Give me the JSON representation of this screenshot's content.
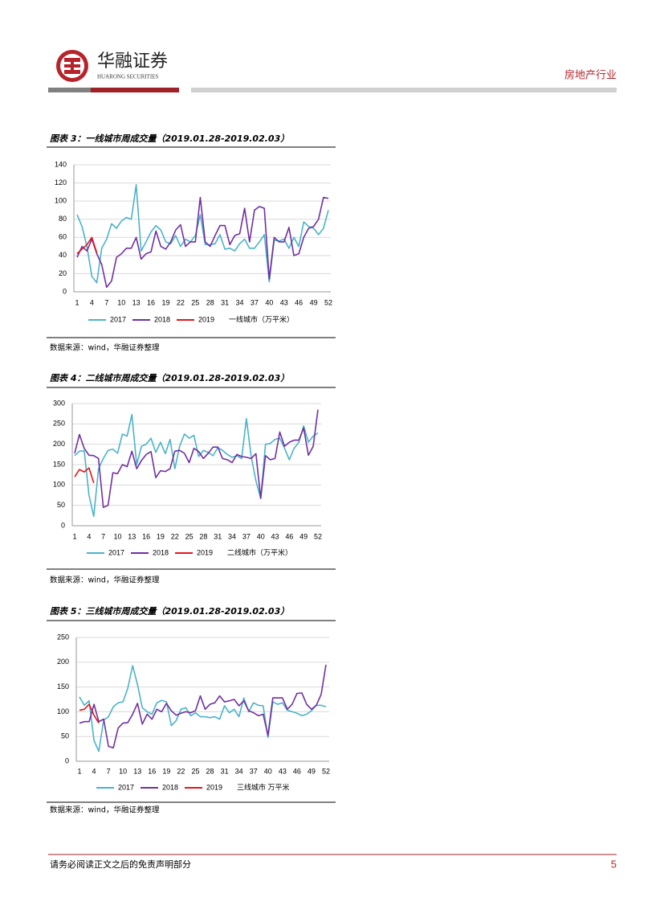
{
  "header": {
    "company": "华融证券",
    "company_en": "HUARONG SECURITIES",
    "sector": "房地产行业"
  },
  "chart_data": [
    {
      "type": "line",
      "title": "图表 3：一线城市周成交量（2019.01.28-2019.02.03）",
      "legend_note": "一线城市（万平米）",
      "source": "数据来源：wind，华融证券整理",
      "x": [
        1,
        2,
        3,
        4,
        5,
        6,
        7,
        8,
        9,
        10,
        11,
        12,
        13,
        14,
        15,
        16,
        17,
        18,
        19,
        20,
        21,
        22,
        23,
        24,
        25,
        26,
        27,
        28,
        29,
        30,
        31,
        32,
        33,
        34,
        35,
        36,
        37,
        38,
        39,
        40,
        41,
        42,
        43,
        44,
        45,
        46,
        47,
        48,
        49,
        50,
        51,
        52
      ],
      "xlim": [
        1,
        52
      ],
      "xticks": [
        1,
        4,
        7,
        10,
        13,
        16,
        19,
        22,
        25,
        28,
        31,
        34,
        37,
        40,
        43,
        46,
        49,
        52
      ],
      "ylim": [
        0,
        140
      ],
      "yticks": [
        0,
        20,
        40,
        60,
        80,
        100,
        120,
        140
      ],
      "grid": true,
      "series": [
        {
          "name": "2017",
          "color": "#4bb3c8",
          "values": [
            85,
            72,
            50,
            17,
            10,
            48,
            58,
            75,
            70,
            78,
            82,
            80,
            118,
            45,
            55,
            66,
            73,
            68,
            55,
            53,
            62,
            50,
            58,
            55,
            62,
            85,
            52,
            52,
            53,
            63,
            47,
            48,
            45,
            53,
            58,
            48,
            48,
            55,
            63,
            11,
            57,
            56,
            58,
            48,
            60,
            50,
            77,
            72,
            70,
            63,
            70,
            90
          ]
        },
        {
          "name": "2018",
          "color": "#7030a0",
          "values": [
            38,
            50,
            45,
            58,
            42,
            30,
            5,
            12,
            38,
            42,
            48,
            48,
            60,
            36,
            42,
            44,
            67,
            50,
            47,
            55,
            68,
            74,
            50,
            55,
            55,
            104,
            55,
            50,
            62,
            73,
            73,
            52,
            62,
            64,
            92,
            55,
            90,
            94,
            92,
            14,
            60,
            55,
            55,
            71,
            40,
            42,
            60,
            70,
            72,
            80,
            104,
            103
          ]
        },
        {
          "name": "2019",
          "color": "#e0161a",
          "values": [
            42,
            47,
            52,
            60,
            43,
            null,
            null,
            null,
            null,
            null,
            null,
            null,
            null,
            null,
            null,
            null,
            null,
            null,
            null,
            null,
            null,
            null,
            null,
            null,
            null,
            null,
            null,
            null,
            null,
            null,
            null,
            null,
            null,
            null,
            null,
            null,
            null,
            null,
            null,
            null,
            null,
            null,
            null,
            null,
            null,
            null,
            null,
            null,
            null,
            null,
            null,
            null
          ]
        }
      ]
    },
    {
      "type": "line",
      "title": "图表 4：二线城市周成交量（2019.01.28-2019.02.03）",
      "legend_note": "二线城市（万平米）",
      "source": "数据来源：wind，华融证券整理",
      "x": [
        1,
        2,
        3,
        4,
        5,
        6,
        7,
        8,
        9,
        10,
        11,
        12,
        13,
        14,
        15,
        16,
        17,
        18,
        19,
        20,
        21,
        22,
        23,
        24,
        25,
        26,
        27,
        28,
        29,
        30,
        31,
        32,
        33,
        34,
        35,
        36,
        37,
        38,
        39,
        40,
        41,
        42,
        43,
        44,
        45,
        46,
        47,
        48,
        49,
        50,
        51,
        52
      ],
      "xlim": [
        1,
        52
      ],
      "xticks": [
        1,
        4,
        7,
        10,
        13,
        16,
        19,
        22,
        25,
        28,
        31,
        34,
        37,
        40,
        43,
        46,
        49,
        52
      ],
      "ylim": [
        0,
        300
      ],
      "yticks": [
        0,
        50,
        100,
        150,
        200,
        250,
        300
      ],
      "grid": true,
      "series": [
        {
          "name": "2017",
          "color": "#4bb3c8",
          "values": [
            172,
            183,
            184,
            75,
            23,
            140,
            165,
            185,
            188,
            178,
            225,
            220,
            273,
            150,
            195,
            200,
            215,
            180,
            205,
            177,
            212,
            140,
            195,
            225,
            215,
            222,
            170,
            185,
            180,
            172,
            192,
            185,
            175,
            168,
            172,
            165,
            263,
            170,
            110,
            67,
            200,
            202,
            212,
            215,
            190,
            162,
            190,
            205,
            245,
            205,
            220,
            228
          ]
        },
        {
          "name": "2018",
          "color": "#7030a0",
          "values": [
            178,
            224,
            190,
            173,
            172,
            165,
            45,
            50,
            130,
            128,
            150,
            145,
            183,
            140,
            160,
            175,
            182,
            118,
            135,
            133,
            140,
            183,
            185,
            178,
            155,
            190,
            182,
            165,
            178,
            193,
            193,
            165,
            162,
            155,
            175,
            170,
            168,
            165,
            177,
            67,
            172,
            162,
            165,
            230,
            195,
            205,
            210,
            210,
            240,
            173,
            195,
            285
          ]
        },
        {
          "name": "2019",
          "color": "#e0161a",
          "values": [
            120,
            138,
            132,
            142,
            105,
            null,
            null,
            null,
            null,
            null,
            null,
            null,
            null,
            null,
            null,
            null,
            null,
            null,
            null,
            null,
            null,
            null,
            null,
            null,
            null,
            null,
            null,
            null,
            null,
            null,
            null,
            null,
            null,
            null,
            null,
            null,
            null,
            null,
            null,
            null,
            null,
            null,
            null,
            null,
            null,
            null,
            null,
            null,
            null,
            null,
            null,
            null
          ]
        }
      ]
    },
    {
      "type": "line",
      "title": "图表 5：三线城市周成交量（2019.01.28-2019.02.03）",
      "legend_note": "三线城市 万平米",
      "source": "数据来源：wind，华融证券整理",
      "x": [
        1,
        2,
        3,
        4,
        5,
        6,
        7,
        8,
        9,
        10,
        11,
        12,
        13,
        14,
        15,
        16,
        17,
        18,
        19,
        20,
        21,
        22,
        23,
        24,
        25,
        26,
        27,
        28,
        29,
        30,
        31,
        32,
        33,
        34,
        35,
        36,
        37,
        38,
        39,
        40,
        41,
        42,
        43,
        44,
        45,
        46,
        47,
        48,
        49,
        50,
        51,
        52
      ],
      "xlim": [
        1,
        52
      ],
      "xticks": [
        1,
        4,
        7,
        10,
        13,
        16,
        19,
        22,
        25,
        28,
        31,
        34,
        37,
        40,
        43,
        46,
        49,
        52
      ],
      "ylim": [
        0,
        250
      ],
      "yticks": [
        0,
        50,
        100,
        150,
        200,
        250
      ],
      "grid": true,
      "series": [
        {
          "name": "2017",
          "color": "#4bb3c8",
          "values": [
            130,
            113,
            122,
            42,
            20,
            83,
            90,
            110,
            118,
            120,
            148,
            193,
            155,
            108,
            100,
            95,
            118,
            123,
            120,
            72,
            82,
            105,
            108,
            92,
            98,
            90,
            90,
            88,
            90,
            85,
            112,
            98,
            105,
            90,
            128,
            100,
            118,
            113,
            112,
            48,
            120,
            115,
            118,
            103,
            100,
            97,
            92,
            95,
            102,
            113,
            113,
            110
          ]
        },
        {
          "name": "2018",
          "color": "#7030a0",
          "values": [
            77,
            80,
            80,
            115,
            80,
            85,
            30,
            27,
            67,
            77,
            78,
            95,
            117,
            75,
            95,
            85,
            105,
            100,
            117,
            102,
            93,
            97,
            100,
            98,
            102,
            132,
            105,
            115,
            118,
            132,
            120,
            122,
            125,
            112,
            122,
            102,
            98,
            92,
            95,
            52,
            128,
            128,
            128,
            105,
            115,
            137,
            138,
            115,
            105,
            113,
            135,
            195
          ]
        },
        {
          "name": "2019",
          "color": "#e0161a",
          "values": [
            103,
            105,
            115,
            93,
            77,
            null,
            null,
            null,
            null,
            null,
            null,
            null,
            null,
            null,
            null,
            null,
            null,
            null,
            null,
            null,
            null,
            null,
            null,
            null,
            null,
            null,
            null,
            null,
            null,
            null,
            null,
            null,
            null,
            null,
            null,
            null,
            null,
            null,
            null,
            null,
            null,
            null,
            null,
            null,
            null,
            null,
            null,
            null,
            null,
            null,
            null,
            null
          ]
        }
      ]
    }
  ],
  "footer": {
    "disclaimer": "请务必阅读正文之后的免责声明部分",
    "page": "5"
  }
}
